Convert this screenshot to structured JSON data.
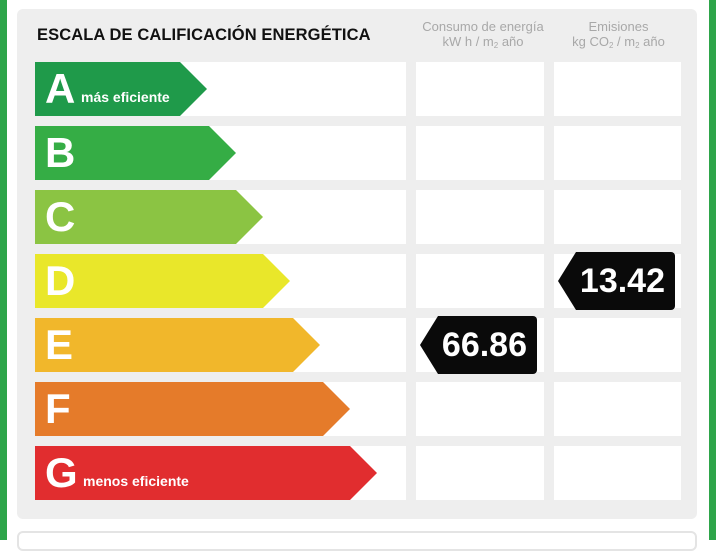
{
  "title": "ESCALA DE CALIFICACIÓN ENERGÉTICA",
  "columns": {
    "consumption": {
      "line1": "Consumo de energía",
      "line2_pre": "kW h / m",
      "line2_sub": "2",
      "line2_post": " año"
    },
    "emissions": {
      "line1": "Emisiones",
      "line2_pre": "kg CO",
      "line2_sub": "2",
      "line2_mid": " / m",
      "line2_sub2": "2",
      "line2_post": " año"
    }
  },
  "ratings": [
    {
      "letter": "A",
      "label": "más eficiente",
      "color": "#1f9a4a"
    },
    {
      "letter": "B",
      "label": "",
      "color": "#35ad45"
    },
    {
      "letter": "C",
      "label": "",
      "color": "#8bc443"
    },
    {
      "letter": "D",
      "label": "",
      "color": "#e9e72a"
    },
    {
      "letter": "E",
      "label": "",
      "color": "#f1b72b"
    },
    {
      "letter": "F",
      "label": "",
      "color": "#e57b2a"
    },
    {
      "letter": "G",
      "label": "menos eficiente",
      "color": "#e12d2f"
    }
  ],
  "consumption_value": {
    "rating": "E",
    "value": "66.86"
  },
  "emissions_value": {
    "rating": "D",
    "value": "13.42"
  },
  "colors": {
    "frame": "#2ea54a",
    "panel": "#eeeeee",
    "badge": "#0a0a0a"
  }
}
